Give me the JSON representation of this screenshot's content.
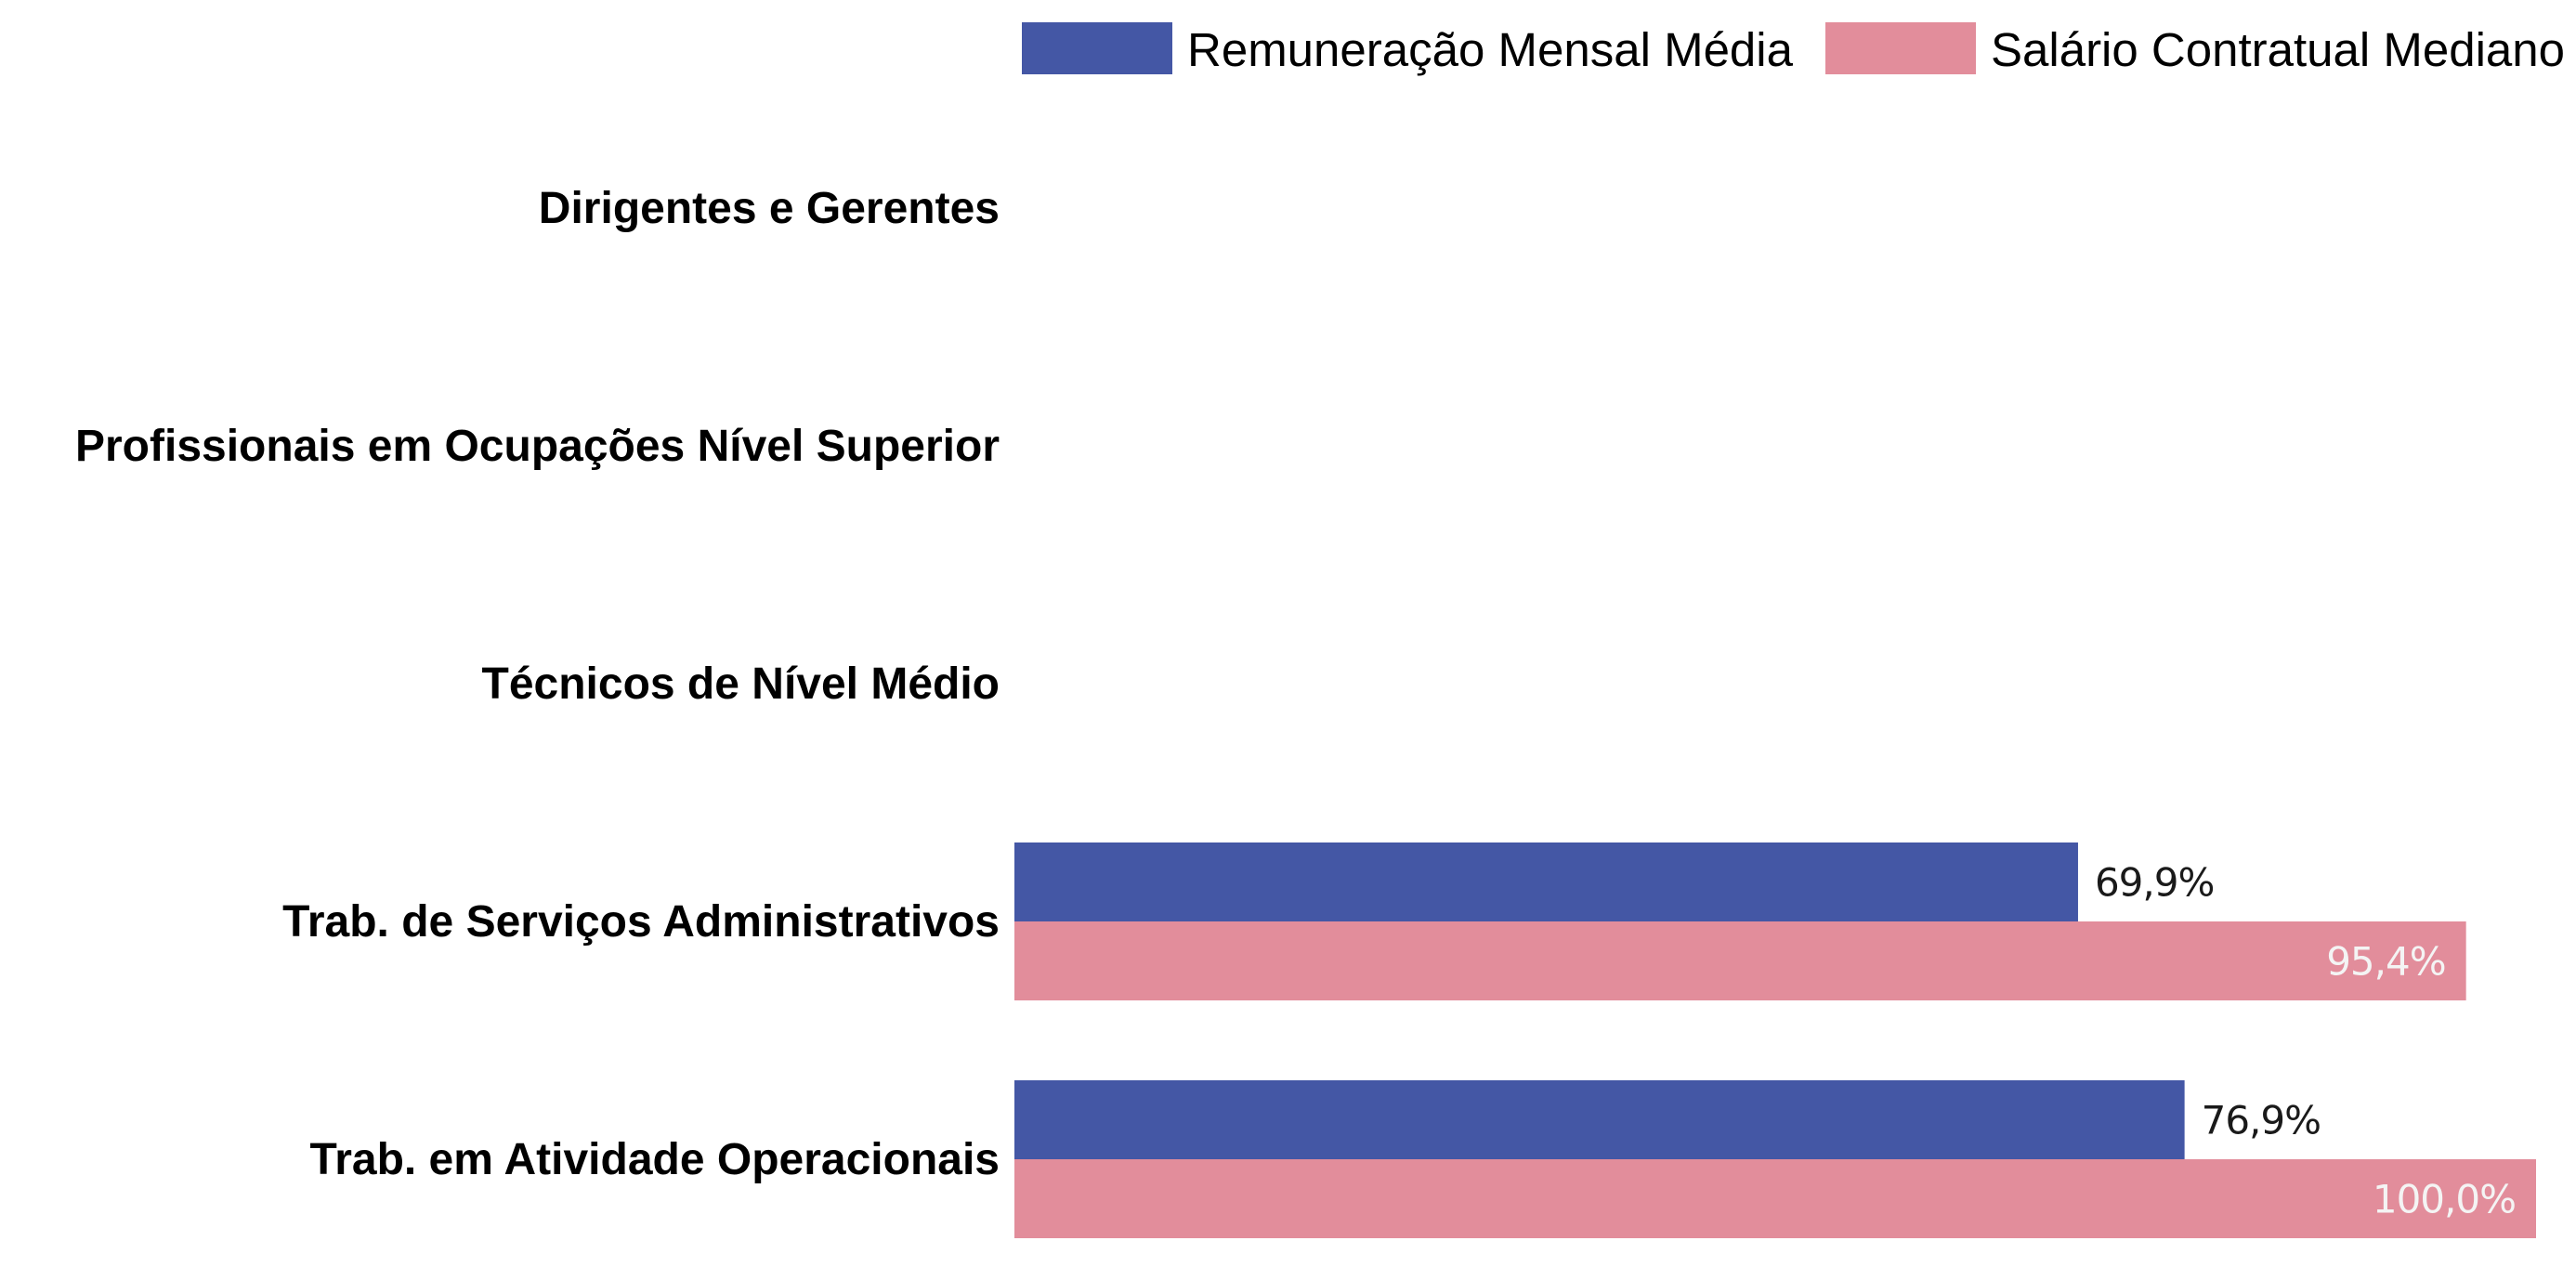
{
  "chart_data": {
    "type": "bar",
    "orientation": "horizontal",
    "categories": [
      "Dirigentes e Gerentes",
      "Profissionais em Ocupações Nível Superior",
      "Técnicos de Nível Médio",
      "Trab. de Serviços Administrativos",
      "Trab. em Atividade Operacionais"
    ],
    "series": [
      {
        "name": "Remuneração Mensal Média",
        "color": "#4457a5",
        "values": [
          null,
          null,
          null,
          69.9,
          76.9
        ],
        "labels": [
          "",
          "",
          "",
          "69,9%",
          "76,9%"
        ]
      },
      {
        "name": "Salário Contratual Mediano",
        "color": "#e28d9b",
        "values": [
          null,
          null,
          null,
          95.4,
          100.0
        ],
        "labels": [
          "",
          "",
          "",
          "95,4%",
          "100,0%"
        ]
      }
    ],
    "xlim": [
      0,
      100
    ],
    "legend_position": "top-right",
    "grid": false,
    "title": "",
    "xlabel": "",
    "ylabel": ""
  }
}
